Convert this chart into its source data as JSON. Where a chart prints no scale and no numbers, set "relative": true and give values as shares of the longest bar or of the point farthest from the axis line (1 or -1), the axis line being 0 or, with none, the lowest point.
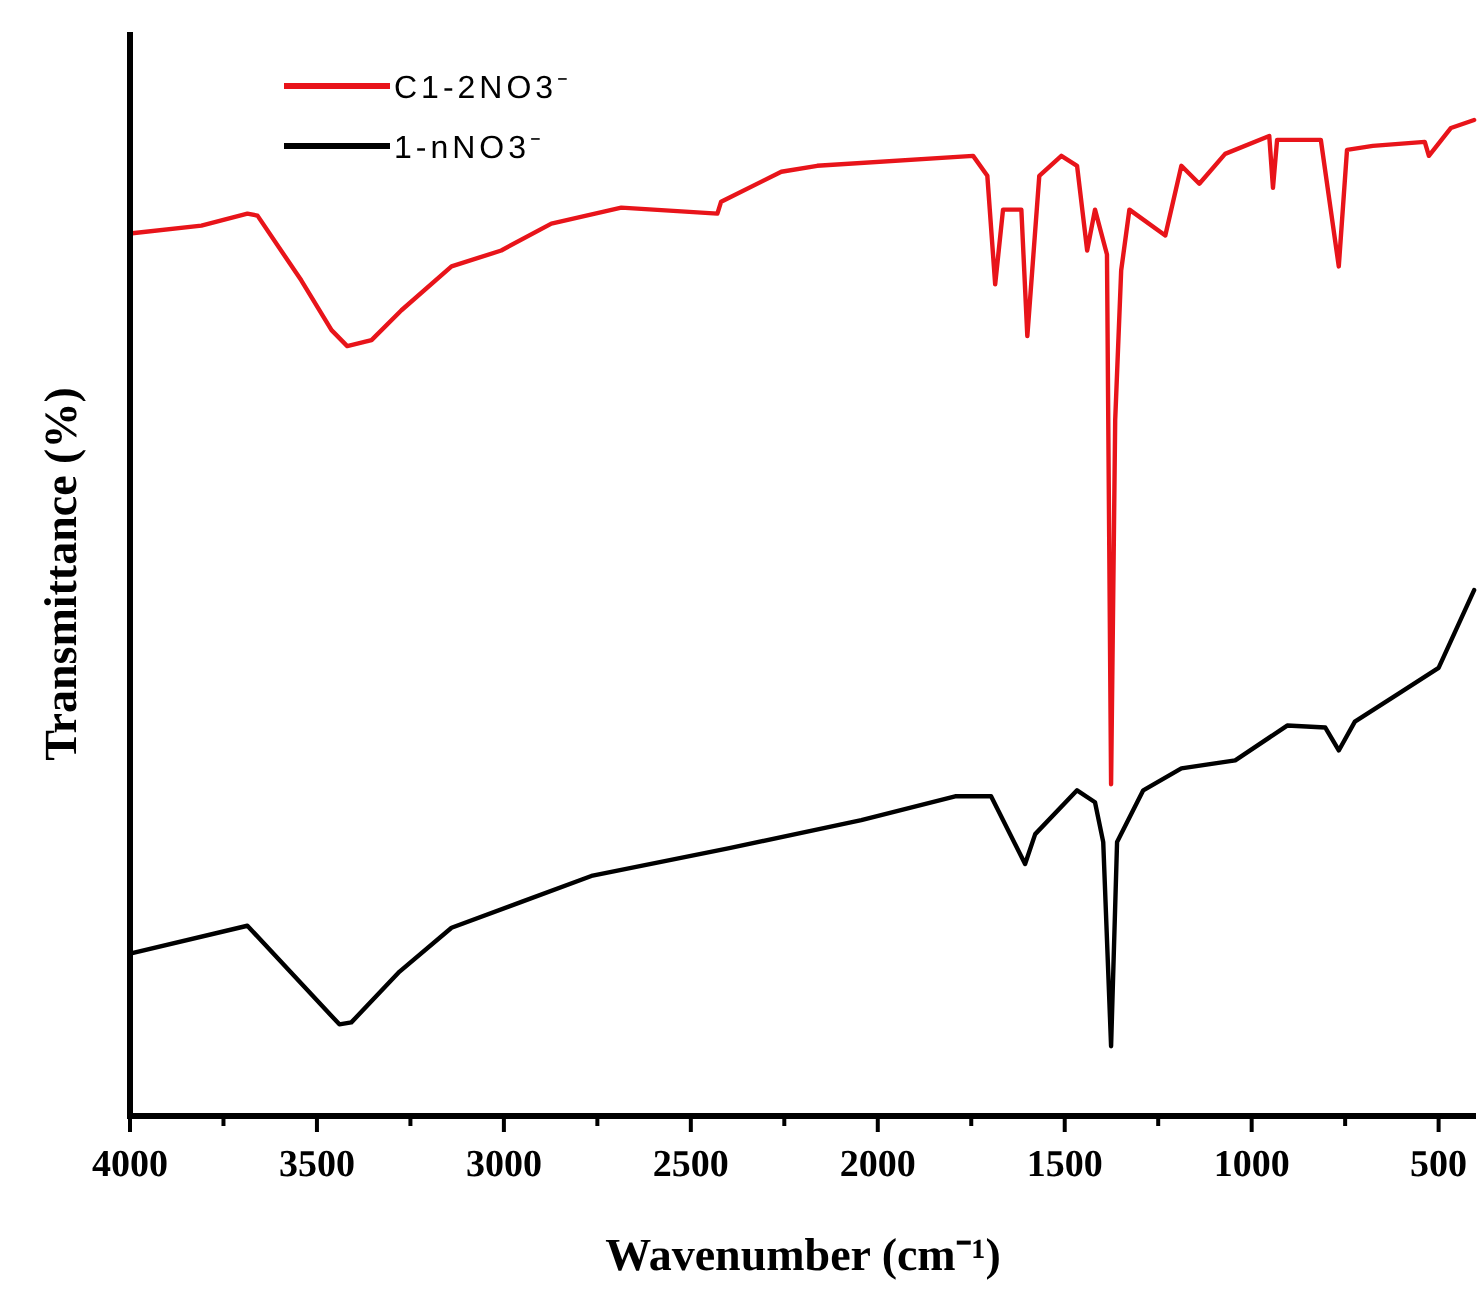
{
  "chart_data": {
    "type": "line",
    "relative": true,
    "xlabel": "Wavenumber (cm⁻¹)",
    "ylabel": "Transmittance (%)",
    "xlim": [
      4000,
      400
    ],
    "xticks": [
      4000,
      {
        "value": 3750,
        "label": null
      },
      3500,
      {
        "value": 3250,
        "label": null
      },
      3000,
      {
        "value": 2750,
        "label": null
      },
      2500,
      {
        "value": 2250,
        "label": null
      },
      2000,
      {
        "value": 1750,
        "label": null
      },
      1500,
      {
        "value": 1250,
        "label": null
      },
      1000,
      {
        "value": 750,
        "label": null
      },
      500
    ],
    "legend": "top left",
    "grid": false,
    "marker": "none",
    "line_style": "solid",
    "series": [
      {
        "name": "C1-2NO3⁻",
        "color": "#e8141a",
        "x": [
          4000,
          3809,
          3686,
          3659,
          3542,
          3461,
          3419,
          3354,
          3274,
          3140,
          3007,
          2873,
          2686,
          2429,
          2419,
          2258,
          2162,
          1745,
          1707,
          1686,
          1665,
          1616,
          1600,
          1568,
          1509,
          1467,
          1440,
          1419,
          1387,
          1376,
          1365,
          1349,
          1327,
          1231,
          1188,
          1140,
          1071,
          953,
          943,
          932,
          815,
          767,
          745,
          676,
          537,
          526,
          467,
          405
        ],
        "values": [
          0.886,
          0.894,
          0.906,
          0.904,
          0.839,
          0.789,
          0.773,
          0.779,
          0.809,
          0.853,
          0.869,
          0.896,
          0.912,
          0.906,
          0.918,
          0.948,
          0.954,
          0.964,
          0.944,
          0.835,
          0.91,
          0.91,
          0.783,
          0.944,
          0.964,
          0.954,
          0.869,
          0.91,
          0.865,
          0.333,
          0.699,
          0.849,
          0.91,
          0.884,
          0.954,
          0.936,
          0.966,
          0.984,
          0.932,
          0.98,
          0.98,
          0.853,
          0.97,
          0.974,
          0.978,
          0.964,
          0.992,
          1
        ]
      },
      {
        "name": "1-nNO3⁻",
        "color": "#000000",
        "x": [
          4000,
          3686,
          3440,
          3408,
          3279,
          3140,
          2953,
          2766,
          2397,
          2044,
          1793,
          1697,
          1606,
          1579,
          1467,
          1419,
          1397,
          1376,
          1360,
          1290,
          1188,
          1044,
          905,
          803,
          767,
          724,
          607,
          500,
          405
        ],
        "values": [
          0.163,
          0.191,
          0.092,
          0.094,
          0.145,
          0.189,
          0.215,
          0.241,
          0.269,
          0.297,
          0.321,
          0.321,
          0.253,
          0.283,
          0.327,
          0.315,
          0.275,
          0.07,
          0.275,
          0.327,
          0.349,
          0.357,
          0.392,
          0.39,
          0.367,
          0.396,
          0.424,
          0.45,
          0.528
        ]
      }
    ]
  }
}
